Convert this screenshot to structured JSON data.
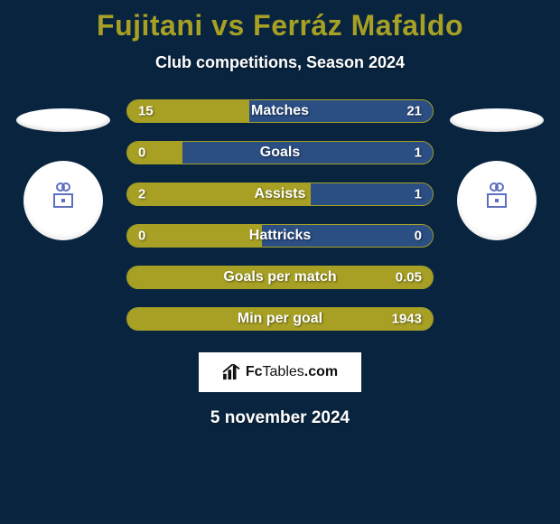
{
  "colors": {
    "background_color": "#08243f",
    "title_color": "#a7a024",
    "subtitle_color": "#ffffff",
    "player1_color": "#a7a024",
    "player2_color": "#2b4e83",
    "bar_border_color": "#a7a024",
    "disc_color": "#ffffff",
    "badge1_border": "#5f6fbf",
    "badge2_border": "#5f6fbf",
    "text_color": "#ffffff",
    "label_fontsize": 16,
    "value_fontsize": 15
  },
  "title": "Fujitani vs Ferráz Mafaldo",
  "subtitle": "Club competitions, Season 2024",
  "date": "5 november 2024",
  "bars": [
    {
      "label": "Matches",
      "left_val": "15",
      "right_val": "21",
      "left_pct": 40,
      "right_pct": 60
    },
    {
      "label": "Goals",
      "left_val": "0",
      "right_val": "1",
      "left_pct": 18,
      "right_pct": 82
    },
    {
      "label": "Assists",
      "left_val": "2",
      "right_val": "1",
      "left_pct": 60,
      "right_pct": 40
    },
    {
      "label": "Hattricks",
      "left_val": "0",
      "right_val": "0",
      "left_pct": 44,
      "right_pct": 56
    },
    {
      "label": "Goals per match",
      "left_val": "",
      "right_val": "0.05",
      "left_pct": 100,
      "right_pct": 0
    },
    {
      "label": "Min per goal",
      "left_val": "",
      "right_val": "1943",
      "left_pct": 100,
      "right_pct": 0
    }
  ],
  "logo": {
    "brand_strong": "Fc",
    "brand_light": "Tables",
    "brand_suffix": ".com"
  }
}
